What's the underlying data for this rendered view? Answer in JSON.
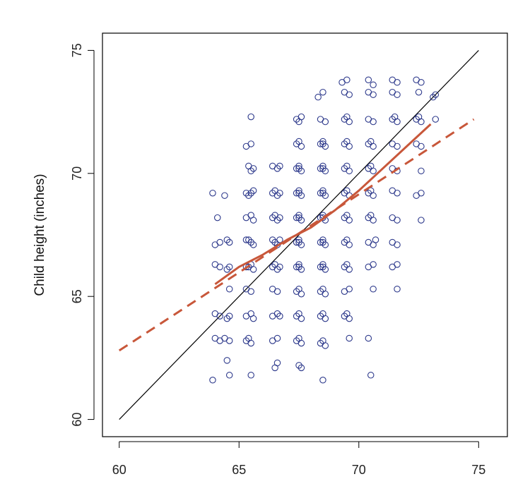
{
  "chart_data": {
    "type": "scatter",
    "title": "",
    "xlabel": "",
    "ylabel": "Child height (inches)",
    "xlim": [
      59.3,
      76.2
    ],
    "ylim": [
      59.3,
      75.7
    ],
    "xticks": [
      60,
      65,
      70,
      75
    ],
    "yticks": [
      60,
      65,
      70,
      75
    ],
    "grid": false,
    "colors": {
      "points": "#2e3a8c",
      "loess": "#c8573a",
      "regression": "#c8573a",
      "identity": "#000000"
    },
    "points": [
      {
        "x": 63.9,
        "y": 69.2
      },
      {
        "x": 64.1,
        "y": 68.2
      },
      {
        "x": 64.4,
        "y": 69.1
      },
      {
        "x": 64.0,
        "y": 67.1
      },
      {
        "x": 64.2,
        "y": 67.2
      },
      {
        "x": 64.5,
        "y": 67.3
      },
      {
        "x": 64.6,
        "y": 67.2
      },
      {
        "x": 64.0,
        "y": 66.3
      },
      {
        "x": 64.2,
        "y": 66.2
      },
      {
        "x": 64.5,
        "y": 66.1
      },
      {
        "x": 64.6,
        "y": 65.3
      },
      {
        "x": 64.6,
        "y": 66.2
      },
      {
        "x": 64.0,
        "y": 64.3
      },
      {
        "x": 64.2,
        "y": 64.2
      },
      {
        "x": 64.5,
        "y": 64.1
      },
      {
        "x": 64.6,
        "y": 64.2
      },
      {
        "x": 64.0,
        "y": 63.3
      },
      {
        "x": 64.2,
        "y": 63.2
      },
      {
        "x": 64.4,
        "y": 63.3
      },
      {
        "x": 64.6,
        "y": 63.2
      },
      {
        "x": 64.5,
        "y": 62.4
      },
      {
        "x": 64.6,
        "y": 61.8
      },
      {
        "x": 63.9,
        "y": 61.6
      },
      {
        "x": 65.5,
        "y": 72.3
      },
      {
        "x": 65.3,
        "y": 71.1
      },
      {
        "x": 65.5,
        "y": 71.2
      },
      {
        "x": 65.4,
        "y": 70.3
      },
      {
        "x": 65.6,
        "y": 70.2
      },
      {
        "x": 65.5,
        "y": 70.1
      },
      {
        "x": 65.3,
        "y": 69.2
      },
      {
        "x": 65.4,
        "y": 69.1
      },
      {
        "x": 65.6,
        "y": 69.3
      },
      {
        "x": 65.5,
        "y": 69.2
      },
      {
        "x": 65.3,
        "y": 68.2
      },
      {
        "x": 65.5,
        "y": 68.3
      },
      {
        "x": 65.6,
        "y": 68.1
      },
      {
        "x": 65.3,
        "y": 67.3
      },
      {
        "x": 65.5,
        "y": 67.2
      },
      {
        "x": 65.6,
        "y": 67.1
      },
      {
        "x": 65.4,
        "y": 67.3
      },
      {
        "x": 65.3,
        "y": 66.2
      },
      {
        "x": 65.5,
        "y": 66.3
      },
      {
        "x": 65.6,
        "y": 66.1
      },
      {
        "x": 65.4,
        "y": 66.2
      },
      {
        "x": 65.3,
        "y": 65.3
      },
      {
        "x": 65.5,
        "y": 65.2
      },
      {
        "x": 65.3,
        "y": 64.2
      },
      {
        "x": 65.5,
        "y": 64.3
      },
      {
        "x": 65.6,
        "y": 64.1
      },
      {
        "x": 65.3,
        "y": 63.2
      },
      {
        "x": 65.5,
        "y": 63.1
      },
      {
        "x": 65.4,
        "y": 63.3
      },
      {
        "x": 65.5,
        "y": 61.8
      },
      {
        "x": 66.4,
        "y": 70.3
      },
      {
        "x": 66.6,
        "y": 70.2
      },
      {
        "x": 66.7,
        "y": 70.3
      },
      {
        "x": 66.4,
        "y": 69.2
      },
      {
        "x": 66.5,
        "y": 69.3
      },
      {
        "x": 66.7,
        "y": 69.2
      },
      {
        "x": 66.6,
        "y": 69.1
      },
      {
        "x": 66.4,
        "y": 68.2
      },
      {
        "x": 66.5,
        "y": 68.3
      },
      {
        "x": 66.7,
        "y": 68.2
      },
      {
        "x": 66.6,
        "y": 68.1
      },
      {
        "x": 66.4,
        "y": 67.3
      },
      {
        "x": 66.5,
        "y": 67.2
      },
      {
        "x": 66.7,
        "y": 67.3
      },
      {
        "x": 66.6,
        "y": 67.1
      },
      {
        "x": 66.4,
        "y": 66.2
      },
      {
        "x": 66.5,
        "y": 66.3
      },
      {
        "x": 66.7,
        "y": 66.2
      },
      {
        "x": 66.6,
        "y": 66.1
      },
      {
        "x": 66.4,
        "y": 65.3
      },
      {
        "x": 66.6,
        "y": 65.2
      },
      {
        "x": 66.4,
        "y": 64.2
      },
      {
        "x": 66.6,
        "y": 64.3
      },
      {
        "x": 66.7,
        "y": 64.2
      },
      {
        "x": 66.4,
        "y": 63.2
      },
      {
        "x": 66.6,
        "y": 63.3
      },
      {
        "x": 66.5,
        "y": 62.1
      },
      {
        "x": 66.6,
        "y": 62.3
      },
      {
        "x": 67.4,
        "y": 72.2
      },
      {
        "x": 67.6,
        "y": 72.3
      },
      {
        "x": 67.5,
        "y": 72.1
      },
      {
        "x": 67.4,
        "y": 71.2
      },
      {
        "x": 67.5,
        "y": 71.3
      },
      {
        "x": 67.6,
        "y": 71.1
      },
      {
        "x": 67.4,
        "y": 70.2
      },
      {
        "x": 67.5,
        "y": 70.3
      },
      {
        "x": 67.6,
        "y": 70.1
      },
      {
        "x": 67.5,
        "y": 70.2
      },
      {
        "x": 67.4,
        "y": 69.2
      },
      {
        "x": 67.5,
        "y": 69.3
      },
      {
        "x": 67.6,
        "y": 69.1
      },
      {
        "x": 67.5,
        "y": 69.2
      },
      {
        "x": 67.4,
        "y": 68.2
      },
      {
        "x": 67.5,
        "y": 68.3
      },
      {
        "x": 67.6,
        "y": 68.1
      },
      {
        "x": 67.5,
        "y": 68.2
      },
      {
        "x": 67.4,
        "y": 67.2
      },
      {
        "x": 67.5,
        "y": 67.3
      },
      {
        "x": 67.6,
        "y": 67.1
      },
      {
        "x": 67.5,
        "y": 67.2
      },
      {
        "x": 67.4,
        "y": 66.2
      },
      {
        "x": 67.5,
        "y": 66.3
      },
      {
        "x": 67.6,
        "y": 66.1
      },
      {
        "x": 67.5,
        "y": 66.2
      },
      {
        "x": 67.4,
        "y": 65.2
      },
      {
        "x": 67.5,
        "y": 65.3
      },
      {
        "x": 67.6,
        "y": 65.1
      },
      {
        "x": 67.4,
        "y": 64.2
      },
      {
        "x": 67.5,
        "y": 64.3
      },
      {
        "x": 67.6,
        "y": 64.1
      },
      {
        "x": 67.4,
        "y": 63.2
      },
      {
        "x": 67.5,
        "y": 63.3
      },
      {
        "x": 67.6,
        "y": 63.1
      },
      {
        "x": 67.5,
        "y": 62.2
      },
      {
        "x": 67.6,
        "y": 62.1
      },
      {
        "x": 68.3,
        "y": 73.1
      },
      {
        "x": 68.5,
        "y": 73.3
      },
      {
        "x": 68.4,
        "y": 72.2
      },
      {
        "x": 68.6,
        "y": 72.1
      },
      {
        "x": 68.4,
        "y": 71.2
      },
      {
        "x": 68.5,
        "y": 71.3
      },
      {
        "x": 68.6,
        "y": 71.1
      },
      {
        "x": 68.5,
        "y": 71.2
      },
      {
        "x": 68.4,
        "y": 70.2
      },
      {
        "x": 68.5,
        "y": 70.3
      },
      {
        "x": 68.6,
        "y": 70.1
      },
      {
        "x": 68.5,
        "y": 70.2
      },
      {
        "x": 68.4,
        "y": 69.2
      },
      {
        "x": 68.5,
        "y": 69.3
      },
      {
        "x": 68.6,
        "y": 69.1
      },
      {
        "x": 68.5,
        "y": 69.2
      },
      {
        "x": 68.4,
        "y": 68.2
      },
      {
        "x": 68.5,
        "y": 68.3
      },
      {
        "x": 68.6,
        "y": 68.1
      },
      {
        "x": 68.5,
        "y": 68.2
      },
      {
        "x": 68.4,
        "y": 67.2
      },
      {
        "x": 68.5,
        "y": 67.3
      },
      {
        "x": 68.6,
        "y": 67.1
      },
      {
        "x": 68.5,
        "y": 67.2
      },
      {
        "x": 68.4,
        "y": 66.2
      },
      {
        "x": 68.5,
        "y": 66.3
      },
      {
        "x": 68.6,
        "y": 66.1
      },
      {
        "x": 68.5,
        "y": 66.2
      },
      {
        "x": 68.4,
        "y": 65.2
      },
      {
        "x": 68.5,
        "y": 65.3
      },
      {
        "x": 68.6,
        "y": 65.1
      },
      {
        "x": 68.4,
        "y": 64.2
      },
      {
        "x": 68.5,
        "y": 64.3
      },
      {
        "x": 68.6,
        "y": 64.1
      },
      {
        "x": 68.4,
        "y": 63.1
      },
      {
        "x": 68.5,
        "y": 63.2
      },
      {
        "x": 68.6,
        "y": 63.0
      },
      {
        "x": 68.5,
        "y": 61.6
      },
      {
        "x": 69.3,
        "y": 73.7
      },
      {
        "x": 69.5,
        "y": 73.8
      },
      {
        "x": 69.4,
        "y": 73.3
      },
      {
        "x": 69.6,
        "y": 73.2
      },
      {
        "x": 69.4,
        "y": 72.2
      },
      {
        "x": 69.5,
        "y": 72.3
      },
      {
        "x": 69.6,
        "y": 72.1
      },
      {
        "x": 69.4,
        "y": 71.2
      },
      {
        "x": 69.5,
        "y": 71.3
      },
      {
        "x": 69.6,
        "y": 71.1
      },
      {
        "x": 69.4,
        "y": 70.2
      },
      {
        "x": 69.5,
        "y": 70.3
      },
      {
        "x": 69.6,
        "y": 70.1
      },
      {
        "x": 69.4,
        "y": 69.2
      },
      {
        "x": 69.5,
        "y": 69.3
      },
      {
        "x": 69.6,
        "y": 69.1
      },
      {
        "x": 69.4,
        "y": 68.2
      },
      {
        "x": 69.5,
        "y": 68.3
      },
      {
        "x": 69.6,
        "y": 68.1
      },
      {
        "x": 69.4,
        "y": 67.2
      },
      {
        "x": 69.5,
        "y": 67.3
      },
      {
        "x": 69.6,
        "y": 67.1
      },
      {
        "x": 69.4,
        "y": 66.2
      },
      {
        "x": 69.5,
        "y": 66.3
      },
      {
        "x": 69.6,
        "y": 66.1
      },
      {
        "x": 69.4,
        "y": 65.2
      },
      {
        "x": 69.6,
        "y": 65.3
      },
      {
        "x": 69.4,
        "y": 64.2
      },
      {
        "x": 69.5,
        "y": 64.3
      },
      {
        "x": 69.6,
        "y": 64.1
      },
      {
        "x": 69.6,
        "y": 63.3
      },
      {
        "x": 70.4,
        "y": 73.8
      },
      {
        "x": 70.6,
        "y": 73.6
      },
      {
        "x": 70.4,
        "y": 73.3
      },
      {
        "x": 70.6,
        "y": 73.2
      },
      {
        "x": 70.4,
        "y": 72.2
      },
      {
        "x": 70.6,
        "y": 72.1
      },
      {
        "x": 70.4,
        "y": 71.2
      },
      {
        "x": 70.5,
        "y": 71.3
      },
      {
        "x": 70.6,
        "y": 71.1
      },
      {
        "x": 70.4,
        "y": 70.2
      },
      {
        "x": 70.5,
        "y": 70.3
      },
      {
        "x": 70.6,
        "y": 70.1
      },
      {
        "x": 70.4,
        "y": 69.2
      },
      {
        "x": 70.5,
        "y": 69.3
      },
      {
        "x": 70.6,
        "y": 69.1
      },
      {
        "x": 70.4,
        "y": 68.2
      },
      {
        "x": 70.5,
        "y": 68.3
      },
      {
        "x": 70.6,
        "y": 68.1
      },
      {
        "x": 70.4,
        "y": 67.2
      },
      {
        "x": 70.6,
        "y": 67.1
      },
      {
        "x": 70.7,
        "y": 67.3
      },
      {
        "x": 70.4,
        "y": 66.2
      },
      {
        "x": 70.6,
        "y": 66.3
      },
      {
        "x": 70.6,
        "y": 65.3
      },
      {
        "x": 70.4,
        "y": 63.3
      },
      {
        "x": 70.5,
        "y": 61.8
      },
      {
        "x": 71.4,
        "y": 73.8
      },
      {
        "x": 71.6,
        "y": 73.7
      },
      {
        "x": 71.4,
        "y": 73.3
      },
      {
        "x": 71.6,
        "y": 73.2
      },
      {
        "x": 71.4,
        "y": 72.2
      },
      {
        "x": 71.6,
        "y": 72.1
      },
      {
        "x": 71.5,
        "y": 72.3
      },
      {
        "x": 71.4,
        "y": 71.2
      },
      {
        "x": 71.6,
        "y": 71.1
      },
      {
        "x": 71.4,
        "y": 70.2
      },
      {
        "x": 71.6,
        "y": 70.1
      },
      {
        "x": 71.4,
        "y": 69.3
      },
      {
        "x": 71.6,
        "y": 69.2
      },
      {
        "x": 71.4,
        "y": 68.2
      },
      {
        "x": 71.6,
        "y": 68.1
      },
      {
        "x": 71.4,
        "y": 67.2
      },
      {
        "x": 71.6,
        "y": 67.1
      },
      {
        "x": 71.4,
        "y": 66.2
      },
      {
        "x": 71.6,
        "y": 66.3
      },
      {
        "x": 71.6,
        "y": 65.3
      },
      {
        "x": 72.4,
        "y": 73.8
      },
      {
        "x": 72.6,
        "y": 73.7
      },
      {
        "x": 72.5,
        "y": 73.3
      },
      {
        "x": 72.4,
        "y": 72.2
      },
      {
        "x": 72.6,
        "y": 72.1
      },
      {
        "x": 72.5,
        "y": 72.3
      },
      {
        "x": 72.4,
        "y": 71.2
      },
      {
        "x": 72.6,
        "y": 71.1
      },
      {
        "x": 72.6,
        "y": 70.1
      },
      {
        "x": 72.4,
        "y": 69.1
      },
      {
        "x": 72.6,
        "y": 69.2
      },
      {
        "x": 72.6,
        "y": 68.1
      },
      {
        "x": 73.1,
        "y": 73.1
      },
      {
        "x": 73.2,
        "y": 73.2
      },
      {
        "x": 73.2,
        "y": 72.2
      }
    ],
    "loess_line": [
      {
        "x": 64.0,
        "y": 65.5
      },
      {
        "x": 65.0,
        "y": 66.2
      },
      {
        "x": 66.0,
        "y": 66.7
      },
      {
        "x": 67.0,
        "y": 67.3
      },
      {
        "x": 68.0,
        "y": 67.8
      },
      {
        "x": 69.0,
        "y": 68.5
      },
      {
        "x": 70.0,
        "y": 69.3
      },
      {
        "x": 71.0,
        "y": 70.2
      },
      {
        "x": 72.0,
        "y": 71.1
      },
      {
        "x": 73.0,
        "y": 72.0
      }
    ],
    "regression_line": [
      {
        "x": 60.0,
        "y": 62.8
      },
      {
        "x": 74.8,
        "y": 72.2
      }
    ],
    "identity_line": [
      {
        "x": 60.0,
        "y": 60.0
      },
      {
        "x": 75.0,
        "y": 75.0
      }
    ]
  }
}
